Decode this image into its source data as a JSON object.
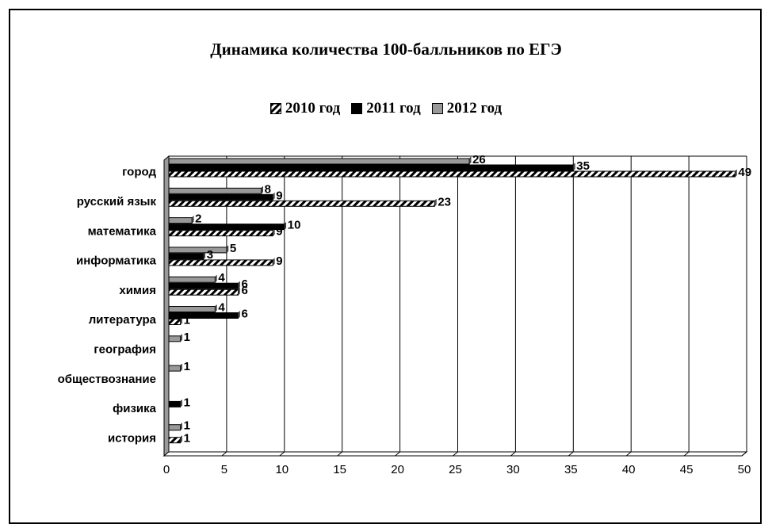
{
  "chart_data": {
    "type": "bar",
    "orientation": "horizontal",
    "title": "Динамика количества 100-балльников по ЕГЭ",
    "categories": [
      "город",
      "русский язык",
      "математика",
      "информатика",
      "химия",
      "литература",
      "география",
      "обществознание",
      "физика",
      "история"
    ],
    "series": [
      {
        "name": "2010 год",
        "values": [
          49,
          23,
          9,
          9,
          6,
          1,
          null,
          null,
          null,
          1
        ],
        "color": "#ffffff",
        "pattern": "diagonal-hatch"
      },
      {
        "name": "2011 год",
        "values": [
          35,
          9,
          10,
          3,
          6,
          6,
          null,
          null,
          1,
          null
        ],
        "color": "#000000",
        "pattern": "solid"
      },
      {
        "name": "2012 год",
        "values": [
          26,
          8,
          2,
          5,
          4,
          4,
          1,
          1,
          null,
          1
        ],
        "color": "#999999",
        "pattern": "solid"
      }
    ],
    "xlim": [
      0,
      50
    ],
    "xticks": [
      "0",
      "5",
      "10",
      "15",
      "20",
      "25",
      "30",
      "35",
      "40",
      "45",
      "50"
    ],
    "grid": true,
    "legend_position": "top"
  }
}
